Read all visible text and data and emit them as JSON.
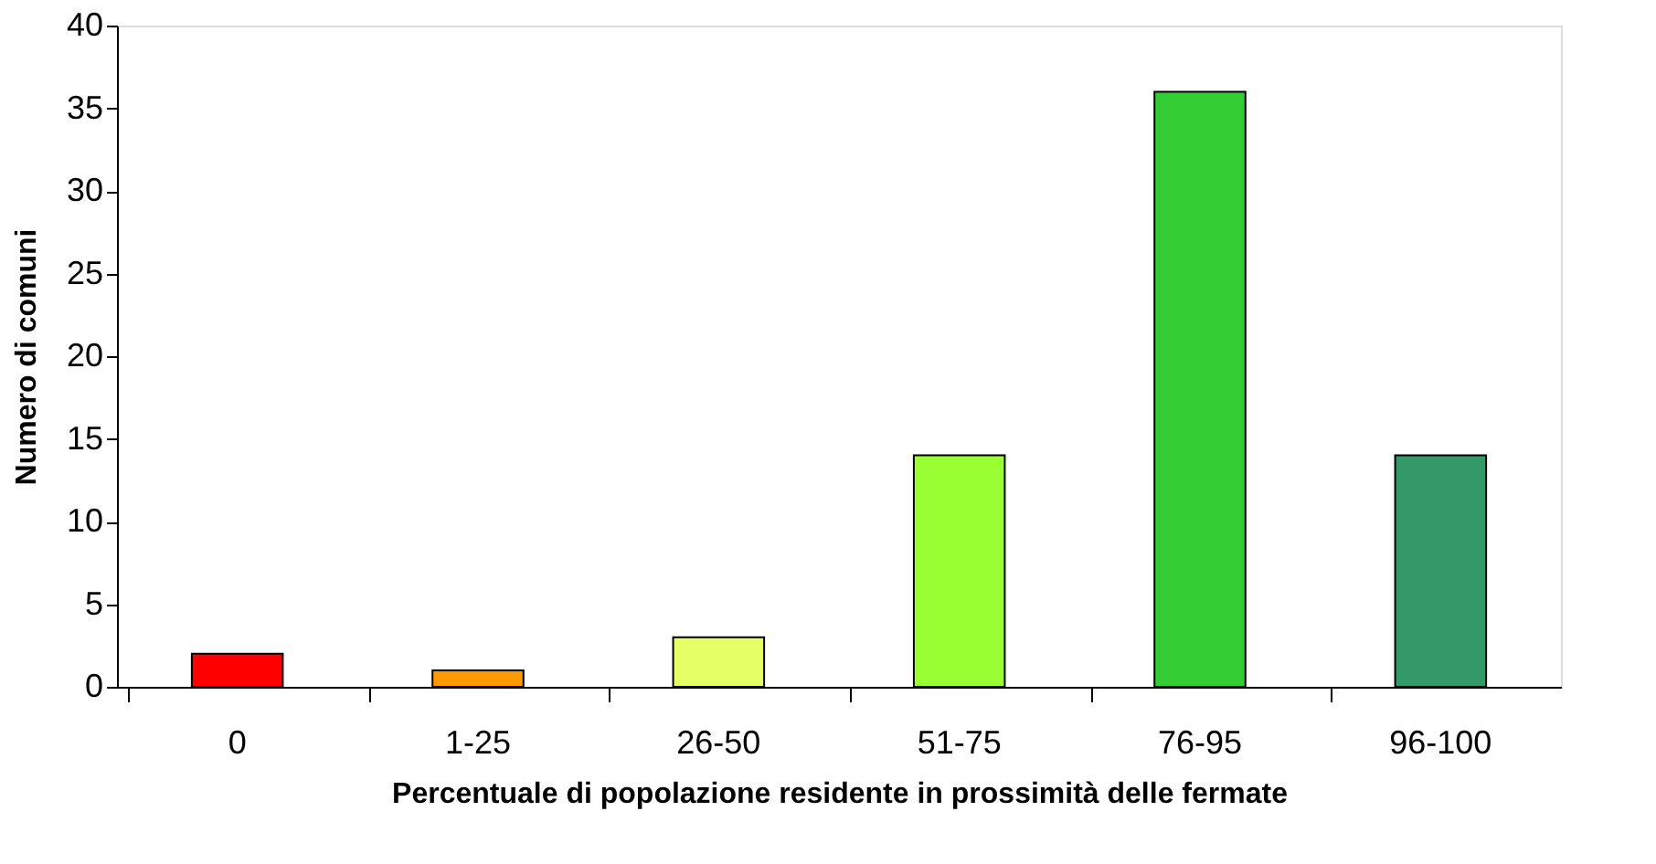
{
  "chart_data": {
    "type": "bar",
    "xlabel": "Percentuale di popolazione residente in prossimità delle fermate",
    "ylabel": "Numero di comuni",
    "categories": [
      "0",
      "1-25",
      "26-50",
      "51-75",
      "76-95",
      "96-100"
    ],
    "values": [
      2,
      1,
      3,
      14,
      36,
      14
    ],
    "colors": [
      "#ff0000",
      "#ff9900",
      "#e5ff66",
      "#99ff33",
      "#33cc33",
      "#339966"
    ],
    "ylim": [
      0,
      40
    ],
    "yticks": [
      0,
      5,
      10,
      15,
      20,
      25,
      30,
      35,
      40
    ],
    "grid": false,
    "legend": false
  }
}
